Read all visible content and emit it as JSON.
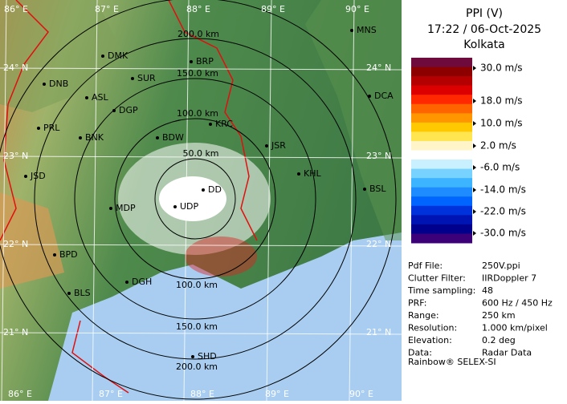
{
  "header": {
    "title": "PPI (V)",
    "time": "17:22 / 06-Oct-2025",
    "station": "Kolkata"
  },
  "scale": {
    "labels": [
      "30.0 m/s",
      "18.0 m/s",
      "10.0 m/s",
      "2.0 m/s",
      "-6.0 m/s",
      "-14.0 m/s",
      "-22.0 m/s",
      "-30.0 m/s"
    ],
    "colors": [
      "#6e0a3c",
      "#8c0000",
      "#b40000",
      "#dc0000",
      "#ff2800",
      "#ff6400",
      "#ff9600",
      "#ffc800",
      "#ffe650",
      "#fff5c8",
      "#ffffff",
      "#c8f0ff",
      "#78d2ff",
      "#3cb4ff",
      "#1e8cff",
      "#0064ff",
      "#0032dc",
      "#0014b4",
      "#00008c",
      "#3c0078"
    ]
  },
  "info": [
    [
      "Pdf File:",
      "250V.ppi"
    ],
    [
      "Clutter Filter:",
      "IIRDoppler 7"
    ],
    [
      "Time sampling:",
      "48"
    ],
    [
      "PRF:",
      "600 Hz / 450 Hz"
    ],
    [
      "Range:",
      "250 km"
    ],
    [
      "Resolution:",
      "1.000 km/pixel"
    ],
    [
      "Elevation:",
      "0.2 deg"
    ],
    [
      "Data:",
      "Radar Data"
    ]
  ],
  "footer": "Rainbow® SELEX-SI",
  "map": {
    "cities": [
      "DMK",
      "BRP",
      "MNS",
      "DNB",
      "SUR",
      "ASL",
      "DGP",
      "DCA",
      "PRL",
      "BNK",
      "KRC",
      "JSR",
      "BDW",
      "KHL",
      "JSD",
      "BSL",
      "DD",
      "MDP",
      "UDP",
      "BPD",
      "DGH",
      "BLS",
      "SHD"
    ],
    "ring_labels": [
      "200.0 km",
      "150.0 km",
      "100.0 km",
      "50.0 km",
      "100.0 km",
      "150.0 km",
      "200.0 km"
    ],
    "lon_labels_top": [
      "86° E",
      "87° E",
      "88° E",
      "89° E",
      "90° E"
    ],
    "lon_labels_bottom": [
      "86° E",
      "87° E",
      "88° E",
      "89° E",
      "90° E"
    ],
    "lat_labels_left": [
      "24° N",
      "23° N",
      "22° N",
      "21° N"
    ],
    "lat_labels_right": [
      "24° N",
      "23° N",
      "22° N",
      "21° N"
    ]
  }
}
